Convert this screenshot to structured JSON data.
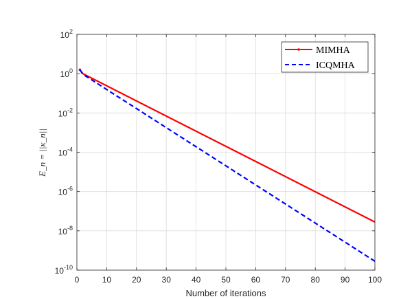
{
  "chart_data": {
    "type": "line",
    "title": "",
    "xlabel": "Number of iterations",
    "ylabel": "E_n = ||κ_n||",
    "xlim": [
      0,
      100
    ],
    "ylim_exponents": [
      -10,
      2
    ],
    "yscale": "log",
    "grid": true,
    "legend_position": "top-right",
    "x_ticks": [
      "0",
      "10",
      "20",
      "30",
      "40",
      "50",
      "60",
      "70",
      "80",
      "90",
      "100"
    ],
    "y_ticks": [
      {
        "base": "10",
        "exp": "-10"
      },
      {
        "base": "10",
        "exp": "-8"
      },
      {
        "base": "10",
        "exp": "-6"
      },
      {
        "base": "10",
        "exp": "-4"
      },
      {
        "base": "10",
        "exp": "-2"
      },
      {
        "base": "10",
        "exp": "0"
      },
      {
        "base": "10",
        "exp": "2"
      }
    ],
    "series": [
      {
        "name": "MIMHA",
        "color": "#ff0000",
        "style": "solid-with-point-markers",
        "x": [
          1,
          2,
          100
        ],
        "log10_y": [
          0.2,
          0.0,
          -7.55
        ]
      },
      {
        "name": "ICQMHA",
        "color": "#0000ff",
        "style": "dashed",
        "x": [
          1,
          2,
          100
        ],
        "log10_y": [
          0.2,
          -0.03,
          -9.55
        ]
      }
    ]
  }
}
